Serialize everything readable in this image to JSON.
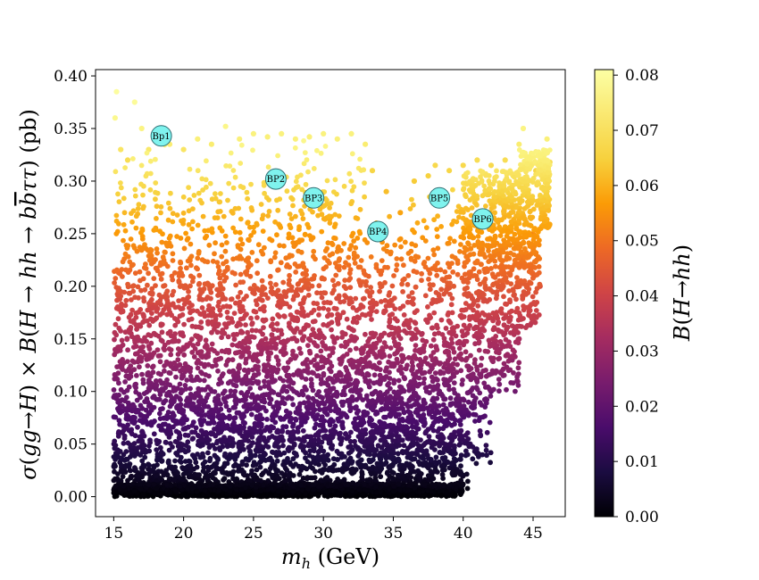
{
  "chart_data": {
    "type": "scatter",
    "title": "",
    "xlabel": "m_h (GeV)",
    "ylabel": "σ(gg→H) × B(H → hh → bb̄ττ) (pb)",
    "colorbar_label": "B(H→hh)",
    "xlim": [
      13.7,
      47.3
    ],
    "ylim": [
      -0.019,
      0.406
    ],
    "clim": [
      0.0,
      0.081
    ],
    "colormap": "inferno",
    "grid": false,
    "x_ticks": [
      "15",
      "20",
      "25",
      "30",
      "35",
      "40",
      "45"
    ],
    "x_tick_values": [
      15,
      20,
      25,
      30,
      35,
      40,
      45
    ],
    "y_ticks": [
      "0.00",
      "0.05",
      "0.10",
      "0.15",
      "0.20",
      "0.25",
      "0.30",
      "0.35",
      "0.40"
    ],
    "y_tick_values": [
      0.0,
      0.05,
      0.1,
      0.15,
      0.2,
      0.25,
      0.3,
      0.35,
      0.4
    ],
    "colorbar_ticks": [
      "0.00",
      "0.01",
      "0.02",
      "0.03",
      "0.04",
      "0.05",
      "0.06",
      "0.07",
      "0.08"
    ],
    "colorbar_tick_values": [
      0.0,
      0.01,
      0.02,
      0.03,
      0.04,
      0.05,
      0.06,
      0.07,
      0.08
    ],
    "benchmarks": [
      {
        "label": "Bp1",
        "x": 18.4,
        "y": 0.343
      },
      {
        "label": "BP2",
        "x": 26.6,
        "y": 0.302
      },
      {
        "label": "BP3",
        "x": 29.3,
        "y": 0.284
      },
      {
        "label": "BP4",
        "x": 33.9,
        "y": 0.252
      },
      {
        "label": "BP5",
        "x": 38.3,
        "y": 0.284
      },
      {
        "label": "BP6",
        "x": 41.4,
        "y": 0.264
      }
    ],
    "benchmark_color": "#7ff3ee",
    "scatter_points": [
      [
        15.2,
        0.385,
        0.08
      ],
      [
        15.1,
        0.36,
        0.077
      ],
      [
        15.5,
        0.33,
        0.07
      ],
      [
        16.0,
        0.32,
        0.068
      ],
      [
        16.5,
        0.375,
        0.079
      ],
      [
        17.0,
        0.35,
        0.075
      ],
      [
        17.5,
        0.33,
        0.071
      ],
      [
        19.0,
        0.335,
        0.072
      ],
      [
        20.0,
        0.33,
        0.07
      ],
      [
        21.0,
        0.34,
        0.073
      ],
      [
        22.0,
        0.335,
        0.072
      ],
      [
        23.0,
        0.352,
        0.076
      ],
      [
        24.0,
        0.34,
        0.073
      ],
      [
        25.0,
        0.345,
        0.074
      ],
      [
        26.0,
        0.342,
        0.073
      ],
      [
        27.0,
        0.345,
        0.074
      ],
      [
        28.0,
        0.34,
        0.073
      ],
      [
        29.0,
        0.342,
        0.073
      ],
      [
        30.0,
        0.345,
        0.074
      ],
      [
        31.0,
        0.34,
        0.073
      ],
      [
        32.0,
        0.345,
        0.074
      ],
      [
        33.0,
        0.335,
        0.072
      ],
      [
        33.5,
        0.31,
        0.066
      ],
      [
        34.5,
        0.29,
        0.062
      ],
      [
        35.5,
        0.27,
        0.058
      ],
      [
        36.5,
        0.3,
        0.064
      ],
      [
        37.5,
        0.305,
        0.065
      ],
      [
        38.0,
        0.315,
        0.067
      ],
      [
        39.0,
        0.31,
        0.066
      ],
      [
        40.0,
        0.315,
        0.067
      ],
      [
        41.0,
        0.32,
        0.068
      ],
      [
        42.0,
        0.315,
        0.067
      ],
      [
        43.0,
        0.32,
        0.068
      ],
      [
        44.0,
        0.335,
        0.072
      ],
      [
        44.3,
        0.35,
        0.075
      ],
      [
        45.2,
        0.31,
        0.066
      ],
      [
        46.0,
        0.34,
        0.073
      ],
      [
        46.2,
        0.318,
        0.068
      ],
      [
        44.8,
        0.28,
        0.06
      ],
      [
        45.0,
        0.25,
        0.053
      ],
      [
        45.5,
        0.2,
        0.043
      ],
      [
        44.0,
        0.15,
        0.032
      ],
      [
        43.5,
        0.13,
        0.028
      ],
      [
        42.0,
        0.1,
        0.021
      ],
      [
        41.2,
        0.075,
        0.016
      ],
      [
        40.5,
        0.05,
        0.011
      ],
      [
        40.0,
        0.02,
        0.004
      ],
      [
        39.5,
        0.005,
        0.001
      ]
    ]
  }
}
